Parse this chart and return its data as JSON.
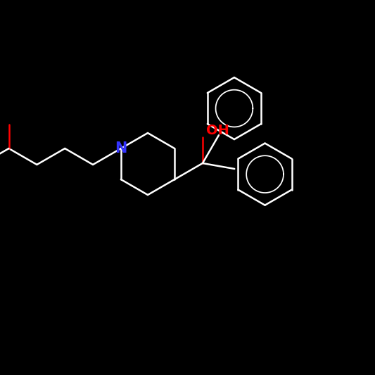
{
  "background_color": "#000000",
  "bond_color": "#ffffff",
  "N_color": "#3333ff",
  "O_color": "#ff0000",
  "bond_width": 1.8,
  "figsize": [
    5.33,
    5.33
  ],
  "dpi": 100
}
